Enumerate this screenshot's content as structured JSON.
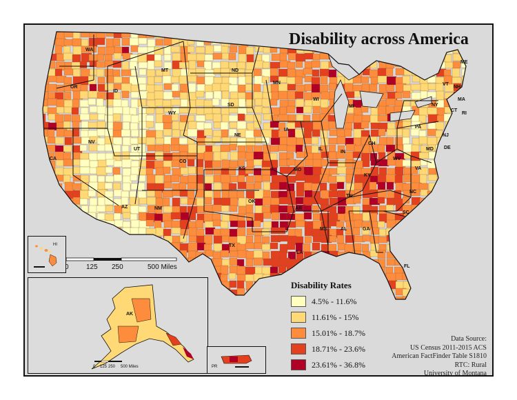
{
  "title": "Disability across America",
  "legend": {
    "title": "Disability Rates",
    "classes": [
      {
        "label": "4.5% - 11.6%",
        "color": "#ffffbf"
      },
      {
        "label": "11.61% - 15%",
        "color": "#fed976"
      },
      {
        "label": "15.01% - 18.7%",
        "color": "#fd8d3c"
      },
      {
        "label": "18.71% - 23.6%",
        "color": "#e3401f"
      },
      {
        "label": "23.61% - 36.8%",
        "color": "#b10026"
      }
    ]
  },
  "source_lines": [
    "Data Source:",
    "US Census 2011-2015 ACS",
    "American FactFinder Table S1810",
    "RTC: Rural",
    "University of Montana"
  ],
  "scalebar": {
    "ticks": [
      "0",
      "125",
      "250",
      "500 Miles"
    ]
  },
  "alaska_scalebar": {
    "ticks": [
      "0",
      "125",
      "250",
      "500 Miles"
    ]
  },
  "state_labels": [
    "WA",
    "OR",
    "CA",
    "NV",
    "ID",
    "MT",
    "WY",
    "UT",
    "AZ",
    "NM",
    "CO",
    "ND",
    "SD",
    "NE",
    "KS",
    "OK",
    "TX",
    "MN",
    "IA",
    "MO",
    "AR",
    "LA",
    "WI",
    "IL",
    "MI",
    "IN",
    "OH",
    "KY",
    "TN",
    "MS",
    "AL",
    "GA",
    "FL",
    "SC",
    "NC",
    "VA",
    "WV",
    "PA",
    "NY",
    "VT",
    "NH",
    "ME",
    "MA",
    "CT",
    "RI",
    "NJ",
    "MD",
    "DE",
    "AK",
    "HI",
    "PR"
  ]
}
